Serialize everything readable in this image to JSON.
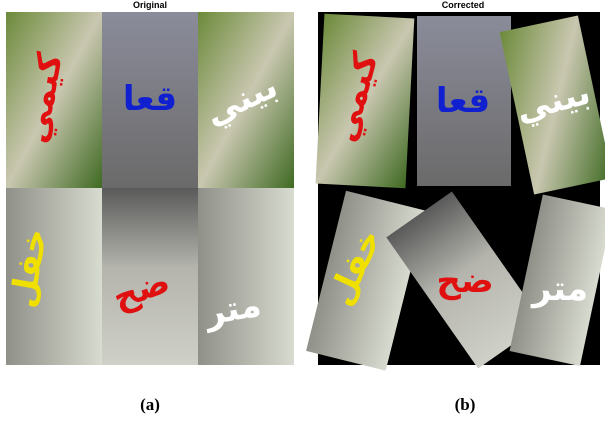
{
  "panels": [
    {
      "title": "Original",
      "caption": "(a)",
      "tiles": [
        {
          "text": "كيمي"
        },
        {
          "text": "قعا"
        },
        {
          "text": "بيني"
        },
        {
          "text": "خفل"
        },
        {
          "text": "ضح"
        },
        {
          "text": "متر"
        }
      ]
    },
    {
      "title": "Corrected",
      "caption": "(b)",
      "tiles": [
        {
          "text": "كيمي"
        },
        {
          "text": "قعا"
        },
        {
          "text": "بيني"
        },
        {
          "text": "خفل"
        },
        {
          "text": "ضح"
        },
        {
          "text": "متر"
        }
      ]
    }
  ]
}
